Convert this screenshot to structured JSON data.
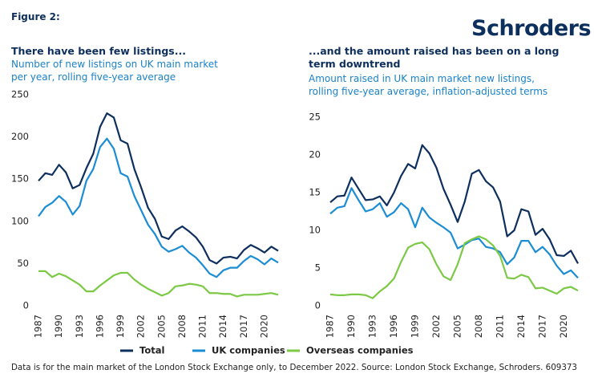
{
  "figure_label": "Figure 2:",
  "brand": "Schroders",
  "footnote": "Data is for the main market of the London Stock Exchange only, to December 2022. Source: London Stock Exchange, Schroders. 609373",
  "chart_data": [
    {
      "type": "line",
      "title": "There have been few listings...",
      "subtitle": "Number of new listings on UK main market per year, rolling five-year average",
      "x": [
        1987,
        1988,
        1989,
        1990,
        1991,
        1992,
        1993,
        1994,
        1995,
        1996,
        1997,
        1998,
        1999,
        2000,
        2001,
        2002,
        2003,
        2004,
        2005,
        2006,
        2007,
        2008,
        2009,
        2010,
        2011,
        2012,
        2013,
        2014,
        2015,
        2016,
        2017,
        2018,
        2019,
        2020,
        2021,
        2022
      ],
      "xlim": [
        1987,
        2022
      ],
      "xticks": [
        1987,
        1990,
        1993,
        1996,
        1999,
        2002,
        2005,
        2008,
        2011,
        2014,
        2017,
        2020
      ],
      "ylim": [
        0,
        250
      ],
      "yticks": [
        0,
        50,
        100,
        150,
        200,
        250
      ],
      "series": [
        {
          "name": "Total",
          "color": "#0d2f5e",
          "values": [
            148,
            157,
            155,
            167,
            158,
            139,
            143,
            163,
            180,
            212,
            228,
            223,
            196,
            192,
            162,
            140,
            116,
            103,
            82,
            79,
            89,
            94,
            88,
            81,
            70,
            54,
            50,
            57,
            58,
            56,
            66,
            72,
            68,
            63,
            70,
            65
          ]
        },
        {
          "name": "UK companies",
          "color": "#1b8dd4",
          "values": [
            106,
            117,
            122,
            130,
            123,
            108,
            118,
            148,
            162,
            188,
            198,
            186,
            157,
            153,
            130,
            113,
            96,
            85,
            70,
            64,
            67,
            71,
            63,
            57,
            48,
            38,
            34,
            42,
            45,
            45,
            53,
            59,
            55,
            49,
            56,
            51
          ]
        },
        {
          "name": "Overseas companies",
          "color": "#7bc944",
          "values": [
            41,
            41,
            34,
            38,
            35,
            30,
            25,
            17,
            17,
            24,
            30,
            36,
            39,
            39,
            31,
            25,
            20,
            16,
            12,
            15,
            23,
            24,
            26,
            25,
            23,
            15,
            15,
            14,
            14,
            11,
            13,
            13,
            13,
            14,
            15,
            13
          ]
        }
      ]
    },
    {
      "type": "line",
      "title": "...and the amount raised has been on a long term downtrend",
      "subtitle": "Amount raised in UK main market new listings, rolling five-year average, inflation-adjusted terms",
      "x": [
        1987,
        1988,
        1989,
        1990,
        1991,
        1992,
        1993,
        1994,
        1995,
        1996,
        1997,
        1998,
        1999,
        2000,
        2001,
        2002,
        2003,
        2004,
        2005,
        2006,
        2007,
        2008,
        2009,
        2010,
        2011,
        2012,
        2013,
        2014,
        2015,
        2016,
        2017,
        2018,
        2019,
        2020,
        2021,
        2022
      ],
      "xlim": [
        1987,
        2022
      ],
      "xticks": [
        1987,
        1990,
        1993,
        1996,
        1999,
        2002,
        2005,
        2008,
        2011,
        2014,
        2017,
        2020
      ],
      "ylim": [
        0,
        25
      ],
      "yticks": [
        0,
        5,
        10,
        15,
        20,
        25
      ],
      "series": [
        {
          "color": "#0d2f5e",
          "values": [
            13.7,
            14.5,
            14.6,
            17.0,
            15.5,
            14.0,
            14.1,
            14.5,
            13.3,
            15.0,
            17.2,
            18.8,
            18.2,
            21.3,
            20.2,
            18.3,
            15.5,
            13.4,
            11.1,
            13.8,
            17.5,
            18.0,
            16.5,
            15.7,
            13.8,
            9.2,
            10.0,
            12.8,
            12.5,
            9.4,
            10.2,
            8.8,
            6.7,
            6.6,
            7.3,
            5.6
          ]
        },
        {
          "color": "#1b8dd4",
          "values": [
            12.2,
            13.0,
            13.2,
            15.6,
            14.0,
            12.5,
            12.8,
            13.6,
            11.8,
            12.4,
            13.6,
            12.8,
            10.4,
            13.0,
            11.7,
            11.0,
            10.4,
            9.7,
            7.6,
            8.1,
            8.7,
            8.9,
            7.8,
            7.6,
            7.1,
            5.5,
            6.4,
            8.6,
            8.6,
            7.1,
            7.8,
            6.8,
            5.3,
            4.2,
            4.7,
            3.7
          ]
        },
        {
          "color": "#7bc944",
          "values": [
            1.5,
            1.4,
            1.4,
            1.5,
            1.5,
            1.4,
            1.0,
            1.9,
            2.6,
            3.6,
            5.8,
            7.7,
            8.2,
            8.4,
            7.5,
            5.5,
            3.9,
            3.4,
            5.5,
            8.3,
            8.8,
            9.2,
            8.8,
            8.0,
            6.6,
            3.7,
            3.6,
            4.1,
            3.8,
            2.3,
            2.4,
            2.0,
            1.6,
            2.3,
            2.5,
            2.0
          ]
        }
      ]
    }
  ]
}
